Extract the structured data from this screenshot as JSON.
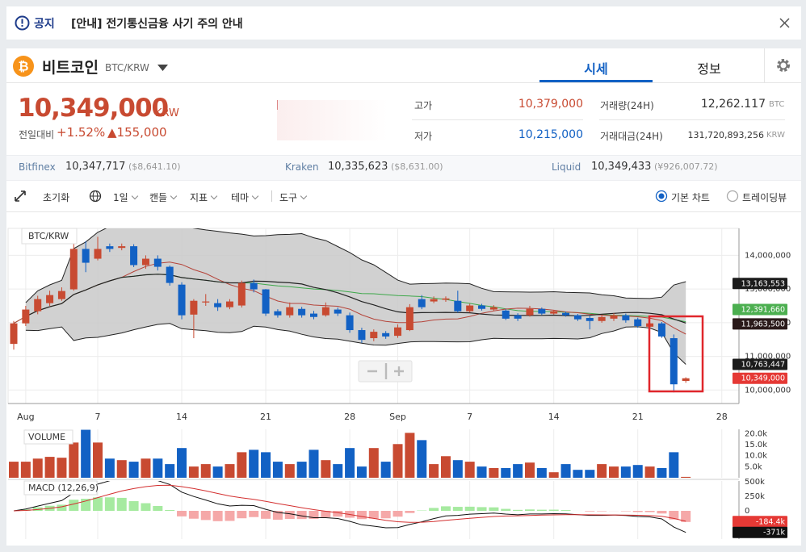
{
  "notice": {
    "label": "공지",
    "text": "[안내] 전기통신금융 사기 주의 안내"
  },
  "header": {
    "name": "비트코인",
    "symbol": "BTC/KRW",
    "tabs": [
      "시세",
      "정보"
    ]
  },
  "price": {
    "value": "10,349,000",
    "unit": "KRW",
    "change_label": "전일대비",
    "change_rate": "+1.52%",
    "change_amount": "▲155,000"
  },
  "stats": [
    {
      "label": "고가",
      "value": "10,379,000"
    },
    {
      "label": "저가",
      "value": "10,215,000"
    },
    {
      "label": "거래량(24H)",
      "value": "12,262.117",
      "unit": "BTC"
    },
    {
      "label": "거래대금(24H)",
      "value": "131,720,893,256",
      "unit": "KRW"
    }
  ],
  "exchanges": [
    {
      "name": "Bitfinex",
      "price": "10,347,717",
      "foreign": "($8,641.10)"
    },
    {
      "name": "Kraken",
      "price": "10,335,623",
      "foreign": "($8,631.00)"
    },
    {
      "name": "Liquid",
      "price": "10,349,433",
      "foreign": "(¥926,007.72)"
    }
  ],
  "toolbar": {
    "reset": "초기화",
    "items": [
      "1일",
      "캔들",
      "지표",
      "테마",
      "도구"
    ],
    "modes": [
      "기본 차트",
      "트레이딩뷰"
    ]
  },
  "chart_data": {
    "type": "candlestick",
    "label": "BTC/KRW",
    "categories": [
      null,
      "Aug",
      null,
      null,
      null,
      null,
      null,
      "7",
      null,
      null,
      null,
      null,
      null,
      null,
      "14",
      null,
      null,
      null,
      null,
      null,
      null,
      "21",
      null,
      null,
      null,
      null,
      null,
      null,
      "28",
      null,
      null,
      null,
      "Sep",
      null,
      null,
      null,
      null,
      null,
      "7",
      null,
      null,
      null,
      null,
      null,
      null,
      "14",
      null,
      null,
      null,
      null,
      null,
      null,
      "21",
      null,
      null,
      null,
      null,
      null,
      null,
      "28"
    ],
    "open": [
      11370000,
      11980000,
      12340000,
      12580000,
      12700000,
      12990000,
      14190000,
      13900000,
      14270000,
      14220000,
      14270000,
      13710000,
      13900000,
      13660000,
      13130000,
      12240000,
      12600000,
      12580000,
      12460000,
      12510000,
      13180000,
      12990000,
      12340000,
      12220000,
      12410000,
      12270000,
      12220000,
      12390000,
      12220000,
      11780000,
      11540000,
      11690000,
      11610000,
      11780000,
      12700000,
      12630000,
      12680000,
      12650000,
      12340000,
      12510000,
      12390000,
      12360000,
      12220000,
      12220000,
      12410000,
      12270000,
      12290000,
      12220000,
      12140000,
      12050000,
      12120000,
      12220000,
      12100000,
      11880000,
      11980000,
      11540000,
      10270000,
      null,
      null,
      null
    ],
    "high": [
      12050000,
      12500000,
      12800000,
      12950000,
      13050000,
      14500000,
      14420000,
      14550000,
      14350000,
      14350000,
      14330000,
      14000000,
      14000000,
      13700000,
      13200000,
      12700000,
      12850000,
      12700000,
      12700000,
      13250000,
      13280000,
      13000000,
      12400000,
      12600000,
      12470000,
      12350000,
      12600000,
      12450000,
      12300000,
      11850000,
      11800000,
      11750000,
      11950000,
      12550000,
      12820000,
      12780000,
      12780000,
      12950000,
      12560000,
      12560000,
      12520000,
      12400000,
      12280000,
      12500000,
      12450000,
      12380000,
      12330000,
      12260000,
      12200000,
      12220000,
      12280000,
      12270000,
      12150000,
      12020000,
      12020000,
      11650000,
      10379000,
      null,
      null,
      null
    ],
    "low": [
      11200000,
      11900000,
      12250000,
      12500000,
      12650000,
      12950000,
      13500000,
      13850000,
      14100000,
      14150000,
      13650000,
      13600000,
      13550000,
      13100000,
      12100000,
      11540000,
      12500000,
      12350000,
      12400000,
      12450000,
      12900000,
      12200000,
      12150000,
      12150000,
      12150000,
      12100000,
      12180000,
      12200000,
      11700000,
      11400000,
      11450000,
      11520000,
      11550000,
      11750000,
      12400000,
      12580000,
      12620000,
      12300000,
      12300000,
      12360000,
      12350000,
      12080000,
      12050000,
      12180000,
      12230000,
      12240000,
      12180000,
      12050000,
      11800000,
      12000000,
      12050000,
      12000000,
      11850000,
      11850000,
      11550000,
      9930000,
      10215000,
      null,
      null,
      null
    ],
    "close": [
      11980000,
      12390000,
      12700000,
      12820000,
      12940000,
      14190000,
      13780000,
      14190000,
      14190000,
      14270000,
      13710000,
      13900000,
      13660000,
      13180000,
      12220000,
      12650000,
      12630000,
      12460000,
      12630000,
      13180000,
      12990000,
      12270000,
      12220000,
      12460000,
      12220000,
      12170000,
      12460000,
      12270000,
      11780000,
      11490000,
      11730000,
      11590000,
      11860000,
      12460000,
      12460000,
      12700000,
      12720000,
      12340000,
      12510000,
      12410000,
      12460000,
      12120000,
      12120000,
      12410000,
      12270000,
      12340000,
      12220000,
      12100000,
      12050000,
      12170000,
      12220000,
      12070000,
      11900000,
      11980000,
      11590000,
      10170000,
      10349000,
      null,
      null,
      null
    ],
    "up_color": "#c84a31",
    "down_color": "#1261c4",
    "ylim": [
      9600000,
      14800000
    ],
    "yticks": [
      {
        "value": 10000000,
        "label": "10,000,000"
      },
      {
        "value": 11000000,
        "label": "11,000,000"
      },
      {
        "value": 12000000,
        "label": "12,000,000"
      },
      {
        "value": 13000000,
        "label": "13,000,000"
      },
      {
        "value": 14000000,
        "label": "14,000,000"
      }
    ],
    "grid": true,
    "price_tags": [
      {
        "value": 13163553,
        "label": "13,163,553",
        "color": "#1b1b1b"
      },
      {
        "value": 12391660,
        "label": "12,391,660",
        "color": "#4caf50"
      },
      {
        "value": 11963500,
        "label": "11,963,500",
        "color": "#2a1a1a"
      },
      {
        "value": 10763447,
        "label": "10,763,447",
        "color": "#1b1b1b"
      },
      {
        "value": 10349000,
        "label": "10,349,000",
        "color": "#e53935"
      }
    ],
    "volume": {
      "label": "VOLUME",
      "values": [
        7300,
        7300,
        8700,
        9500,
        9100,
        16000,
        21800,
        16000,
        8700,
        8000,
        7300,
        8700,
        8700,
        6200,
        13500,
        5100,
        6200,
        5100,
        6200,
        11600,
        12700,
        11600,
        7300,
        6200,
        7300,
        12700,
        8000,
        6200,
        13500,
        5100,
        13500,
        7300,
        15300,
        20400,
        17100,
        6200,
        9800,
        8000,
        7300,
        5100,
        4400,
        4400,
        6200,
        6900,
        4400,
        2500,
        6200,
        3600,
        3600,
        6200,
        5100,
        5100,
        5800,
        5100,
        4400,
        11600,
        400,
        null,
        null,
        null
      ],
      "ylim": [
        0,
        22000
      ],
      "yticks": [
        {
          "value": 5000,
          "label": "5.0k"
        },
        {
          "value": 10000,
          "label": "10.0k"
        },
        {
          "value": 15000,
          "label": "15.0k"
        },
        {
          "value": 20000,
          "label": "20.0k"
        }
      ]
    },
    "macd": {
      "label": "MACD (12,26,9)",
      "ylim": [
        -486000,
        514000
      ],
      "yticks": [
        0,
        {
          "value": 250000,
          "label": "250k"
        },
        {
          "value": 500000,
          "label": "500k"
        }
      ],
      "tags": [
        {
          "value": -184400,
          "label": "-184.4k",
          "color": "#e53935"
        },
        {
          "value": -371000,
          "label": "-371k",
          "color": "#111111"
        }
      ]
    }
  }
}
